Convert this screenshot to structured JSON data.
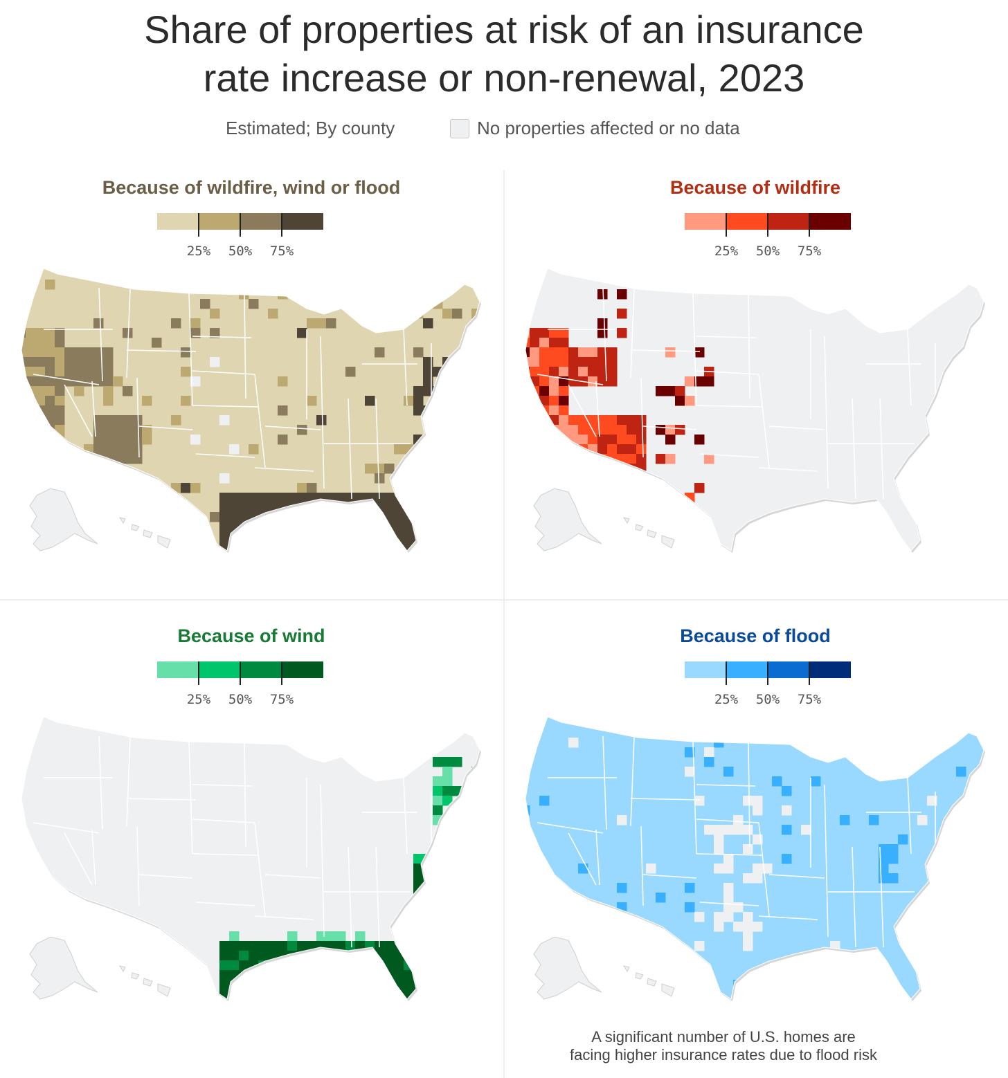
{
  "title_line1": "Share of properties at risk of an insurance",
  "title_line2": "rate increase or non-renewal, 2023",
  "subtitle": "Estimated; By county",
  "nodata_label": "No properties affected or no data",
  "nodata_color": "#eff0f2",
  "legend_ticks": [
    "25%",
    "50%",
    "75%"
  ],
  "panels": [
    {
      "title": "Because of wildfire, wind or flood",
      "title_color": "#6b5e47",
      "colors": [
        "#e0d5b1",
        "#bba971",
        "#8a7b5d",
        "#4f4536"
      ],
      "base_color": "#e0d5b1"
    },
    {
      "title": "Because of wildfire",
      "title_color": "#b32d12",
      "colors": [
        "#ff9a80",
        "#ff4b1f",
        "#bf2412",
        "#6b0000"
      ],
      "base_color": "#eff0f2"
    },
    {
      "title": "Because of wind",
      "title_color": "#177a35",
      "colors": [
        "#66e0a8",
        "#00c56a",
        "#008a3f",
        "#005a20"
      ],
      "base_color": "#eff0f2"
    },
    {
      "title": "Because of flood",
      "title_color": "#0a4a9a",
      "colors": [
        "#99d9ff",
        "#38b0ff",
        "#0a6bd1",
        "#002d7a"
      ],
      "base_color": "#99d9ff"
    }
  ],
  "caption_line1": "A significant number of U.S. homes are",
  "caption_line2": "facing higher insurance rates due to flood risk"
}
